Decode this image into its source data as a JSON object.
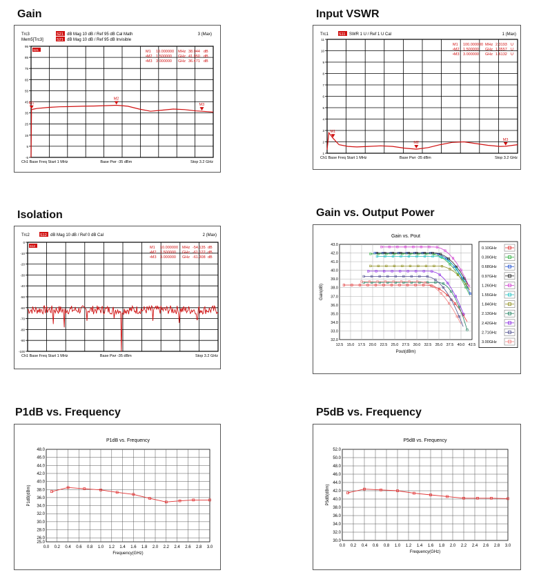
{
  "panels": [
    {
      "title": "Gain"
    },
    {
      "title": "Input VSWR"
    },
    {
      "title": "Isolation"
    },
    {
      "title": "Gain vs. Output Power"
    },
    {
      "title": "P1dB vs. Frequency"
    },
    {
      "title": "P5dB vs. Frequency"
    }
  ],
  "chart_data": [
    {
      "type": "line",
      "title": "Gain",
      "header": {
        "row1": {
          "trace": "Trc3",
          "param": "S21",
          "format": "dB Mag",
          "scale": "10 dB /",
          "ref": "Ref 95 dB",
          "extra": "Cal Math",
          "right": "3 (Max)"
        },
        "row2": {
          "trace": "Mem5[Trc3]",
          "param": "S21",
          "format": "dB Mag",
          "scale": "10 dB /",
          "ref": "Ref 95 dB",
          "extra": "Invisible"
        }
      },
      "ref_badge": "S21",
      "y_tick_labels": [
        "95",
        "85",
        "75",
        "65",
        "55",
        "45",
        "35",
        "25",
        "15",
        "5",
        "-5"
      ],
      "ylim": [
        -5,
        95
      ],
      "xlim": [
        0.001,
        3.2
      ],
      "markers": [
        {
          "name": "M1",
          "x_text": "10.000000",
          "x_unit": "MHz",
          "y_text": "38.044",
          "y_unit": "dB"
        },
        {
          "name": "M2",
          "x_text": "1.500000",
          "x_unit": "GHz",
          "y_text": "41.950",
          "y_unit": "dB"
        },
        {
          "name": "M3",
          "x_text": "3.000000",
          "x_unit": "GHz",
          "y_text": "36.471",
          "y_unit": "dB"
        }
      ],
      "marker_points": [
        {
          "label": "M1",
          "x": 0.01,
          "y": 38.0
        },
        {
          "label": "M2",
          "x": 1.5,
          "y": 41.9
        },
        {
          "label": "M3",
          "x": 3.0,
          "y": 36.5
        }
      ],
      "series": [
        {
          "x": [
            0.001,
            0.01,
            0.05,
            0.1,
            0.3,
            0.5,
            0.7,
            0.9,
            1.1,
            1.3,
            1.5,
            1.7,
            1.9,
            2.1,
            2.3,
            2.5,
            2.7,
            2.9,
            3.0,
            3.2
          ],
          "values": [
            -5,
            38,
            38.5,
            39,
            40,
            40.5,
            40.7,
            41,
            41.2,
            41.5,
            41.9,
            41,
            38.5,
            36.5,
            37.5,
            38.5,
            38,
            36.8,
            36.5,
            35.8
          ]
        }
      ],
      "footer": {
        "left": "Ch1  Base Freq  Start  1 MHz",
        "mid": "Base Pwr  -35 dBm",
        "right": "Stop  3.2 GHz"
      }
    },
    {
      "type": "line",
      "title": "Input VSWR",
      "header": {
        "row1": {
          "trace": "Trc1",
          "param": "S11",
          "format": "SWR",
          "scale": "1 U /",
          "ref": "Ref 1 U",
          "extra": "Cal",
          "right": "1 (Max)"
        }
      },
      "y_tick_labels": [
        "11",
        "10",
        "9",
        "8",
        "7",
        "6",
        "5",
        "4",
        "3",
        "2",
        "1"
      ],
      "ylim": [
        1,
        11
      ],
      "xlim": [
        0.001,
        3.2
      ],
      "markers": [
        {
          "name": "M1",
          "x_text": "100.000000",
          "x_unit": "MHz",
          "y_text": "2.3193",
          "y_unit": "U"
        },
        {
          "name": "M2",
          "x_text": "1.500000",
          "x_unit": "GHz",
          "y_text": "1.3557",
          "y_unit": "U"
        },
        {
          "name": "M3",
          "x_text": "3.000000",
          "x_unit": "GHz",
          "y_text": "1.6132",
          "y_unit": "U"
        }
      ],
      "marker_points": [
        {
          "label": "M1",
          "x": 0.1,
          "y": 2.32
        },
        {
          "label": "M2",
          "x": 1.5,
          "y": 1.36
        },
        {
          "label": "M3",
          "x": 3.0,
          "y": 1.61
        }
      ],
      "series": [
        {
          "x": [
            0.001,
            0.03,
            0.1,
            0.2,
            0.35,
            0.5,
            0.7,
            0.9,
            1.1,
            1.3,
            1.5,
            1.7,
            1.9,
            2.1,
            2.3,
            2.5,
            2.7,
            2.9,
            3.0,
            3.2
          ],
          "values": [
            1.3,
            2.8,
            2.32,
            1.75,
            1.6,
            1.55,
            1.6,
            1.65,
            1.6,
            1.45,
            1.36,
            1.5,
            1.75,
            1.95,
            2.0,
            1.85,
            1.7,
            1.6,
            1.61,
            1.75
          ]
        }
      ],
      "footer": {
        "left": "Ch1  Base Freq  Start  1 MHz",
        "mid": "Base Pwr  -35 dBm",
        "right": "Stop  3.2 GHz"
      }
    },
    {
      "type": "line",
      "title": "Isolation",
      "header": {
        "row1": {
          "trace": "Trc2",
          "param": "S12",
          "format": "dB Mag",
          "scale": "10 dB /",
          "ref": "Ref 0 dB",
          "extra": "Cal",
          "right": "2 (Max)"
        }
      },
      "ref_badge": "S12",
      "y_tick_labels": [
        "0",
        "-10",
        "-20",
        "-30",
        "-40",
        "-50",
        "-60",
        "-70",
        "-80",
        "-90",
        "-100"
      ],
      "ylim": [
        -100,
        0
      ],
      "xlim": [
        0.001,
        3.2
      ],
      "markers": [
        {
          "name": "M1",
          "x_text": "10.000000",
          "x_unit": "MHz",
          "y_text": "-54.135",
          "y_unit": "dB"
        },
        {
          "name": "M2",
          "x_text": "1.500000",
          "x_unit": "GHz",
          "y_text": "-61.122",
          "y_unit": "dB"
        },
        {
          "name": "M3",
          "x_text": "3.000000",
          "x_unit": "GHz",
          "y_text": "-61.308",
          "y_unit": "dB"
        }
      ],
      "noise": {
        "base": -62,
        "amplitude": 4,
        "spikes": [
          [
            0.43,
            -75
          ],
          [
            0.62,
            -78
          ],
          [
            1.0,
            -72
          ],
          [
            1.45,
            -70
          ],
          [
            1.58,
            -100
          ],
          [
            2.1,
            -72
          ],
          [
            2.55,
            -74
          ],
          [
            2.85,
            -71
          ]
        ]
      },
      "footer": {
        "left": "Ch1  Base Freq  Start  1 MHz",
        "mid": "Base Pwr  -35 dBm",
        "right": "Stop  3.2 GHz"
      }
    },
    {
      "type": "line",
      "title": "Gain vs. Pout",
      "xlabel": "Pout(dBm)",
      "ylabel": "Gain(dB)",
      "xlim": [
        12.5,
        42.5
      ],
      "ylim": [
        32.0,
        43.0
      ],
      "x_ticks": [
        "12.5",
        "15.0",
        "17.5",
        "20.0",
        "22.5",
        "25.0",
        "27.5",
        "30.0",
        "32.5",
        "35.0",
        "37.5",
        "40.0",
        "42.5"
      ],
      "y_ticks": [
        "43.0",
        "42.0",
        "41.0",
        "40.0",
        "39.0",
        "38.0",
        "37.0",
        "36.0",
        "35.0",
        "34.0",
        "33.0",
        "32.0"
      ],
      "legend_position": "right",
      "series": [
        {
          "name": "0.10GHz",
          "color": "#e03030",
          "gain": 38.3,
          "start": 13.5,
          "knee": 32,
          "end": 41.8,
          "drop": 4.6
        },
        {
          "name": "0.39GHz",
          "color": "#30b040",
          "gain": 41.9,
          "start": 19.5,
          "knee": 33,
          "end": 42.2,
          "drop": 5.0
        },
        {
          "name": "0.68GHz",
          "color": "#2050d0",
          "gain": 42.0,
          "start": 20.5,
          "knee": 33.5,
          "end": 42.2,
          "drop": 4.8
        },
        {
          "name": "0.97GHz",
          "color": "#222222",
          "gain": 42.0,
          "start": 21.0,
          "knee": 34,
          "end": 42.5,
          "drop": 4.6
        },
        {
          "name": "1.26GHz",
          "color": "#d040d0",
          "gain": 42.7,
          "start": 22.0,
          "knee": 34,
          "end": 42.3,
          "drop": 5.1
        },
        {
          "name": "1.55GHz",
          "color": "#20c0c0",
          "gain": 41.6,
          "start": 21.0,
          "knee": 34.5,
          "end": 42.5,
          "drop": 4.6
        },
        {
          "name": "1.84GHz",
          "color": "#909020",
          "gain": 40.5,
          "start": 19.5,
          "knee": 35,
          "end": 42.3,
          "drop": 3.0
        },
        {
          "name": "2.13GHz",
          "color": "#208060",
          "gain": 38.6,
          "start": 18.0,
          "knee": 35,
          "end": 41.7,
          "drop": 6.0
        },
        {
          "name": "2.42GHz",
          "color": "#8a2be2",
          "gain": 39.9,
          "start": 19.0,
          "knee": 33,
          "end": 41.0,
          "drop": 5.5
        },
        {
          "name": "2.71GHz",
          "color": "#505090",
          "gain": 39.3,
          "start": 18.0,
          "knee": 32,
          "end": 40.5,
          "drop": 5.8
        },
        {
          "name": "3.00GHz",
          "color": "#f08080",
          "gain": 38.7,
          "start": 17.5,
          "knee": 30.5,
          "end": 40.0,
          "drop": 4.9
        }
      ]
    },
    {
      "type": "line",
      "title": "P1dB vs. Frequency",
      "xlabel": "Frequency(GHz)",
      "ylabel": "P1dB(dBm)",
      "xlim": [
        0.0,
        3.0
      ],
      "ylim": [
        25.0,
        48.0
      ],
      "x_ticks": [
        "0.0",
        "0.2",
        "0.4",
        "0.6",
        "0.8",
        "1.0",
        "1.2",
        "1.4",
        "1.6",
        "1.8",
        "2.0",
        "2.2",
        "2.4",
        "2.6",
        "2.8",
        "3.0"
      ],
      "y_ticks": [
        "48.0",
        "46.0",
        "44.0",
        "42.0",
        "40.0",
        "38.0",
        "36.0",
        "34.0",
        "32.0",
        "30.0",
        "28.0",
        "26.0",
        "25.0"
      ],
      "series": [
        {
          "x": [
            0.1,
            0.4,
            0.7,
            1.0,
            1.3,
            1.6,
            1.9,
            2.2,
            2.45,
            2.7,
            3.0
          ],
          "values": [
            37.5,
            38.5,
            38.2,
            37.9,
            37.3,
            36.8,
            35.8,
            34.9,
            35.2,
            35.4,
            35.4
          ]
        }
      ]
    },
    {
      "type": "line",
      "title": "P5dB vs. Frequency",
      "xlabel": "Frequency(GHz)",
      "ylabel": "P5dB(dBm)",
      "xlim": [
        0.0,
        3.0
      ],
      "ylim": [
        30.0,
        52.0
      ],
      "x_ticks": [
        "0.0",
        "0.2",
        "0.4",
        "0.6",
        "0.8",
        "1.0",
        "1.2",
        "1.4",
        "1.6",
        "1.8",
        "2.0",
        "2.2",
        "2.4",
        "2.6",
        "2.8",
        "3.0"
      ],
      "y_ticks": [
        "52.0",
        "50.0",
        "48.0",
        "46.0",
        "44.0",
        "42.0",
        "40.0",
        "38.0",
        "36.0",
        "34.0",
        "32.0",
        "30.0"
      ],
      "series": [
        {
          "x": [
            0.1,
            0.4,
            0.7,
            1.0,
            1.3,
            1.6,
            1.9,
            2.2,
            2.45,
            2.7,
            3.0
          ],
          "values": [
            41.5,
            42.4,
            42.2,
            42.0,
            41.4,
            41.0,
            40.6,
            40.2,
            40.2,
            40.2,
            40.1
          ]
        }
      ]
    }
  ]
}
